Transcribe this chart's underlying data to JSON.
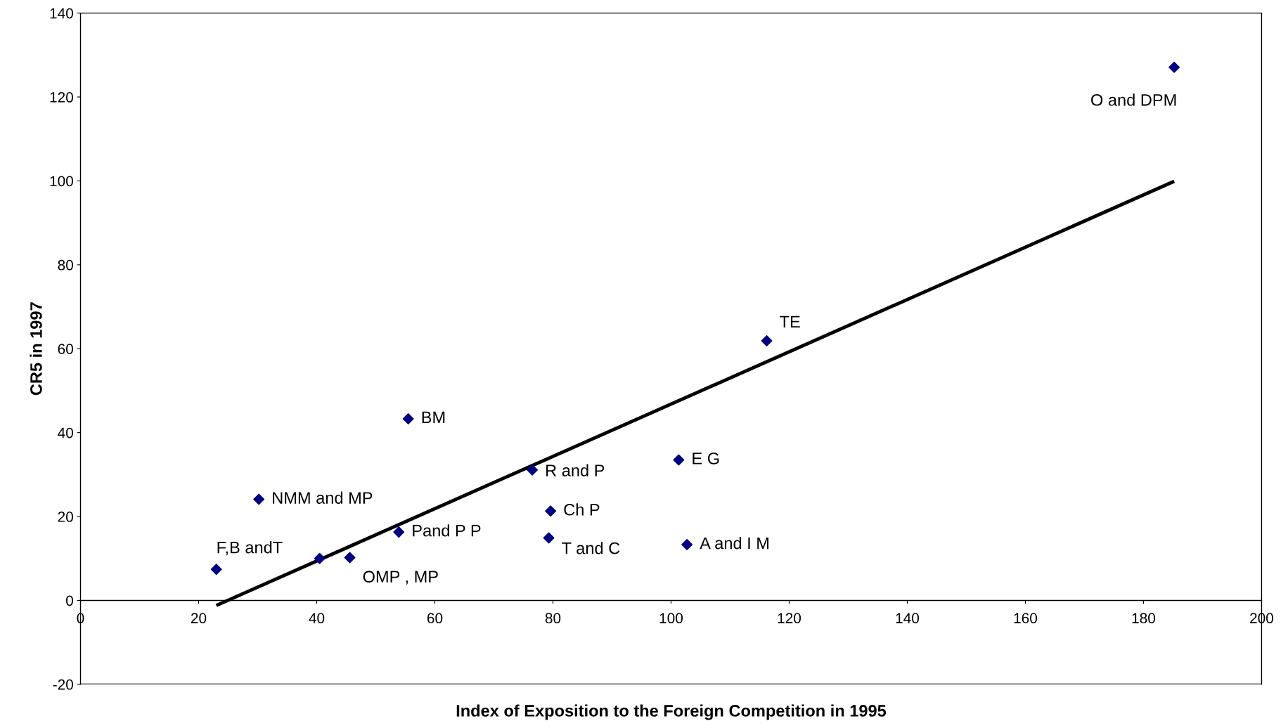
{
  "chart_data": {
    "type": "scatter",
    "xlabel": "Index of Exposition to the Foreign Competition in 1995",
    "ylabel": "CR5 in 1997",
    "x": [
      23.0,
      40.5,
      45.6,
      30.2,
      53.9,
      55.5,
      76.5,
      79.6,
      79.3,
      101.3,
      102.7,
      116.2,
      185.2
    ],
    "series": [
      {
        "color": "#000080",
        "marker": "diamond",
        "values": [
          7.4,
          10.0,
          10.2,
          24.1,
          16.3,
          43.3,
          31.1,
          21.3,
          14.9,
          33.5,
          13.3,
          61.9,
          127.1
        ]
      },
      {
        "type": "line",
        "color": "#000000",
        "x": [
          23.0,
          185.2
        ],
        "values": [
          -1.2,
          99.9
        ]
      }
    ],
    "annotations": [
      {
        "text": "F,B andT",
        "x": 23.0,
        "y": 7.4
      },
      {
        "text": "OMP , MP",
        "x": 45.6,
        "y": 10.2
      },
      {
        "text": "NMM and MP",
        "x": 30.2,
        "y": 24.1
      },
      {
        "text": "Pand P P",
        "x": 53.9,
        "y": 16.3
      },
      {
        "text": "BM",
        "x": 55.5,
        "y": 43.3
      },
      {
        "text": "R and P",
        "x": 76.5,
        "y": 31.1
      },
      {
        "text": "Ch P",
        "x": 79.6,
        "y": 21.3
      },
      {
        "text": "T and C",
        "x": 79.3,
        "y": 14.9
      },
      {
        "text": "E G",
        "x": 101.3,
        "y": 33.5
      },
      {
        "text": "A and I M",
        "x": 102.7,
        "y": 13.3
      },
      {
        "text": "TE",
        "x": 116.2,
        "y": 61.9
      },
      {
        "text": "O and DPM",
        "x": 185.2,
        "y": 127.1
      }
    ],
    "xlim": [
      0,
      200
    ],
    "xticks": [
      0,
      20,
      40,
      60,
      80,
      100,
      120,
      140,
      160,
      180,
      200
    ],
    "ylim": [
      -20,
      140
    ],
    "yticks": [
      -20,
      0,
      20,
      40,
      60,
      80,
      100,
      120,
      140
    ],
    "grid": false,
    "legend": false
  }
}
